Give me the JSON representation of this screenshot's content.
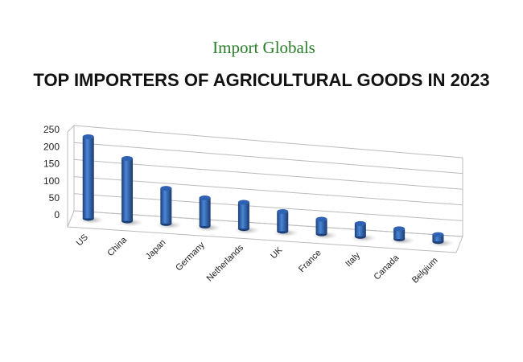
{
  "chart_data": {
    "type": "bar3d",
    "logo": "Import Globals",
    "title": "TOP IMPORTERS OF AGRICULTURAL GOODS IN 2023",
    "categories": [
      "US",
      "China",
      "Japan",
      "Germany",
      "Netherlands",
      "UK",
      "France",
      "Italy",
      "Canada",
      "Belgium"
    ],
    "values": [
      240,
      185,
      105,
      85,
      80,
      60,
      45,
      40,
      32,
      22
    ],
    "color": "#2f62b0",
    "ylim": [
      0,
      250
    ],
    "yticks": [
      0,
      50,
      100,
      150,
      200,
      250
    ],
    "grid": true
  }
}
